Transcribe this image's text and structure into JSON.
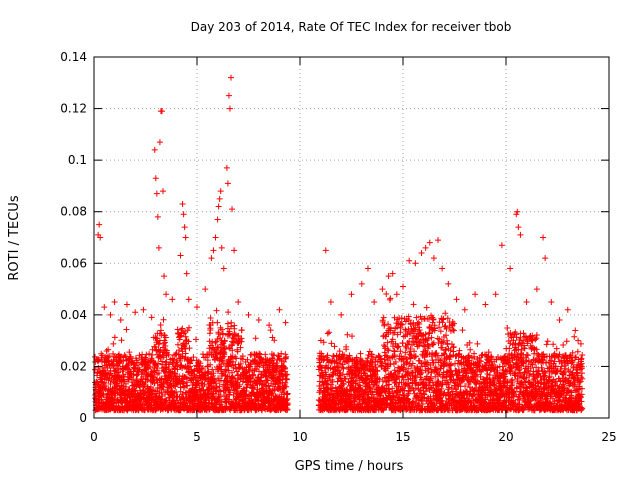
{
  "chart_data": {
    "type": "scatter",
    "title": "Day 203 of 2014, Rate Of TEC Index for receiver tbob",
    "xlabel": "GPS time / hours",
    "ylabel": "ROTI / TECUs",
    "xlim": [
      0,
      25
    ],
    "ylim": [
      0,
      0.14
    ],
    "xticks": [
      0,
      5,
      10,
      15,
      20,
      25
    ],
    "xtick_labels": [
      "0",
      "5",
      "10",
      "15",
      "20",
      "25"
    ],
    "yticks": [
      0,
      0.02,
      0.04,
      0.06,
      0.08,
      0.1,
      0.12,
      0.14
    ],
    "ytick_labels": [
      "0",
      "0.02",
      "0.04",
      "0.06",
      "0.08",
      "0.1",
      "0.12",
      "0.14"
    ],
    "grid": true,
    "marker": "+",
    "color": "#ff0000",
    "data_gap_hours": [
      9.4,
      10.9
    ],
    "series": [
      {
        "name": "ROTI",
        "points": [
          [
            0.2,
            0.071
          ],
          [
            0.25,
            0.075
          ],
          [
            0.3,
            0.07
          ],
          [
            0.5,
            0.043
          ],
          [
            0.8,
            0.04
          ],
          [
            1.0,
            0.045
          ],
          [
            1.3,
            0.038
          ],
          [
            1.6,
            0.044
          ],
          [
            2.0,
            0.041
          ],
          [
            2.4,
            0.042
          ],
          [
            2.8,
            0.039
          ],
          [
            2.95,
            0.104
          ],
          [
            3.0,
            0.093
          ],
          [
            3.05,
            0.087
          ],
          [
            3.1,
            0.078
          ],
          [
            3.15,
            0.066
          ],
          [
            3.2,
            0.107
          ],
          [
            3.25,
            0.119
          ],
          [
            3.3,
            0.119
          ],
          [
            3.35,
            0.088
          ],
          [
            3.4,
            0.055
          ],
          [
            3.5,
            0.048
          ],
          [
            3.8,
            0.046
          ],
          [
            4.2,
            0.063
          ],
          [
            4.3,
            0.083
          ],
          [
            4.35,
            0.079
          ],
          [
            4.4,
            0.074
          ],
          [
            4.45,
            0.07
          ],
          [
            4.5,
            0.056
          ],
          [
            4.6,
            0.046
          ],
          [
            5.0,
            0.043
          ],
          [
            5.4,
            0.05
          ],
          [
            5.7,
            0.062
          ],
          [
            5.8,
            0.065
          ],
          [
            5.9,
            0.07
          ],
          [
            6.0,
            0.077
          ],
          [
            6.05,
            0.082
          ],
          [
            6.1,
            0.085
          ],
          [
            6.15,
            0.088
          ],
          [
            6.2,
            0.066
          ],
          [
            6.3,
            0.058
          ],
          [
            6.45,
            0.097
          ],
          [
            6.5,
            0.091
          ],
          [
            6.55,
            0.125
          ],
          [
            6.6,
            0.12
          ],
          [
            6.65,
            0.132
          ],
          [
            6.7,
            0.081
          ],
          [
            6.8,
            0.065
          ],
          [
            7.0,
            0.045
          ],
          [
            7.5,
            0.04
          ],
          [
            8.0,
            0.038
          ],
          [
            8.5,
            0.036
          ],
          [
            9.0,
            0.042
          ],
          [
            9.3,
            0.037
          ],
          [
            11.25,
            0.065
          ],
          [
            11.5,
            0.045
          ],
          [
            12.0,
            0.04
          ],
          [
            12.5,
            0.048
          ],
          [
            13.0,
            0.052
          ],
          [
            13.3,
            0.058
          ],
          [
            13.6,
            0.045
          ],
          [
            14.0,
            0.05
          ],
          [
            14.3,
            0.055
          ],
          [
            14.5,
            0.056
          ],
          [
            14.7,
            0.048
          ],
          [
            15.0,
            0.051
          ],
          [
            15.3,
            0.061
          ],
          [
            15.6,
            0.06
          ],
          [
            15.9,
            0.064
          ],
          [
            16.1,
            0.066
          ],
          [
            16.3,
            0.068
          ],
          [
            16.5,
            0.062
          ],
          [
            16.7,
            0.069
          ],
          [
            16.9,
            0.058
          ],
          [
            17.2,
            0.052
          ],
          [
            17.6,
            0.046
          ],
          [
            18.0,
            0.042
          ],
          [
            18.5,
            0.048
          ],
          [
            19.0,
            0.044
          ],
          [
            19.5,
            0.048
          ],
          [
            19.8,
            0.067
          ],
          [
            20.2,
            0.058
          ],
          [
            20.5,
            0.079
          ],
          [
            20.55,
            0.08
          ],
          [
            20.6,
            0.074
          ],
          [
            20.7,
            0.071
          ],
          [
            21.0,
            0.045
          ],
          [
            21.5,
            0.05
          ],
          [
            21.8,
            0.07
          ],
          [
            21.9,
            0.062
          ],
          [
            22.2,
            0.045
          ],
          [
            22.6,
            0.038
          ],
          [
            23.0,
            0.042
          ],
          [
            23.5,
            0.03
          ]
        ]
      }
    ]
  }
}
